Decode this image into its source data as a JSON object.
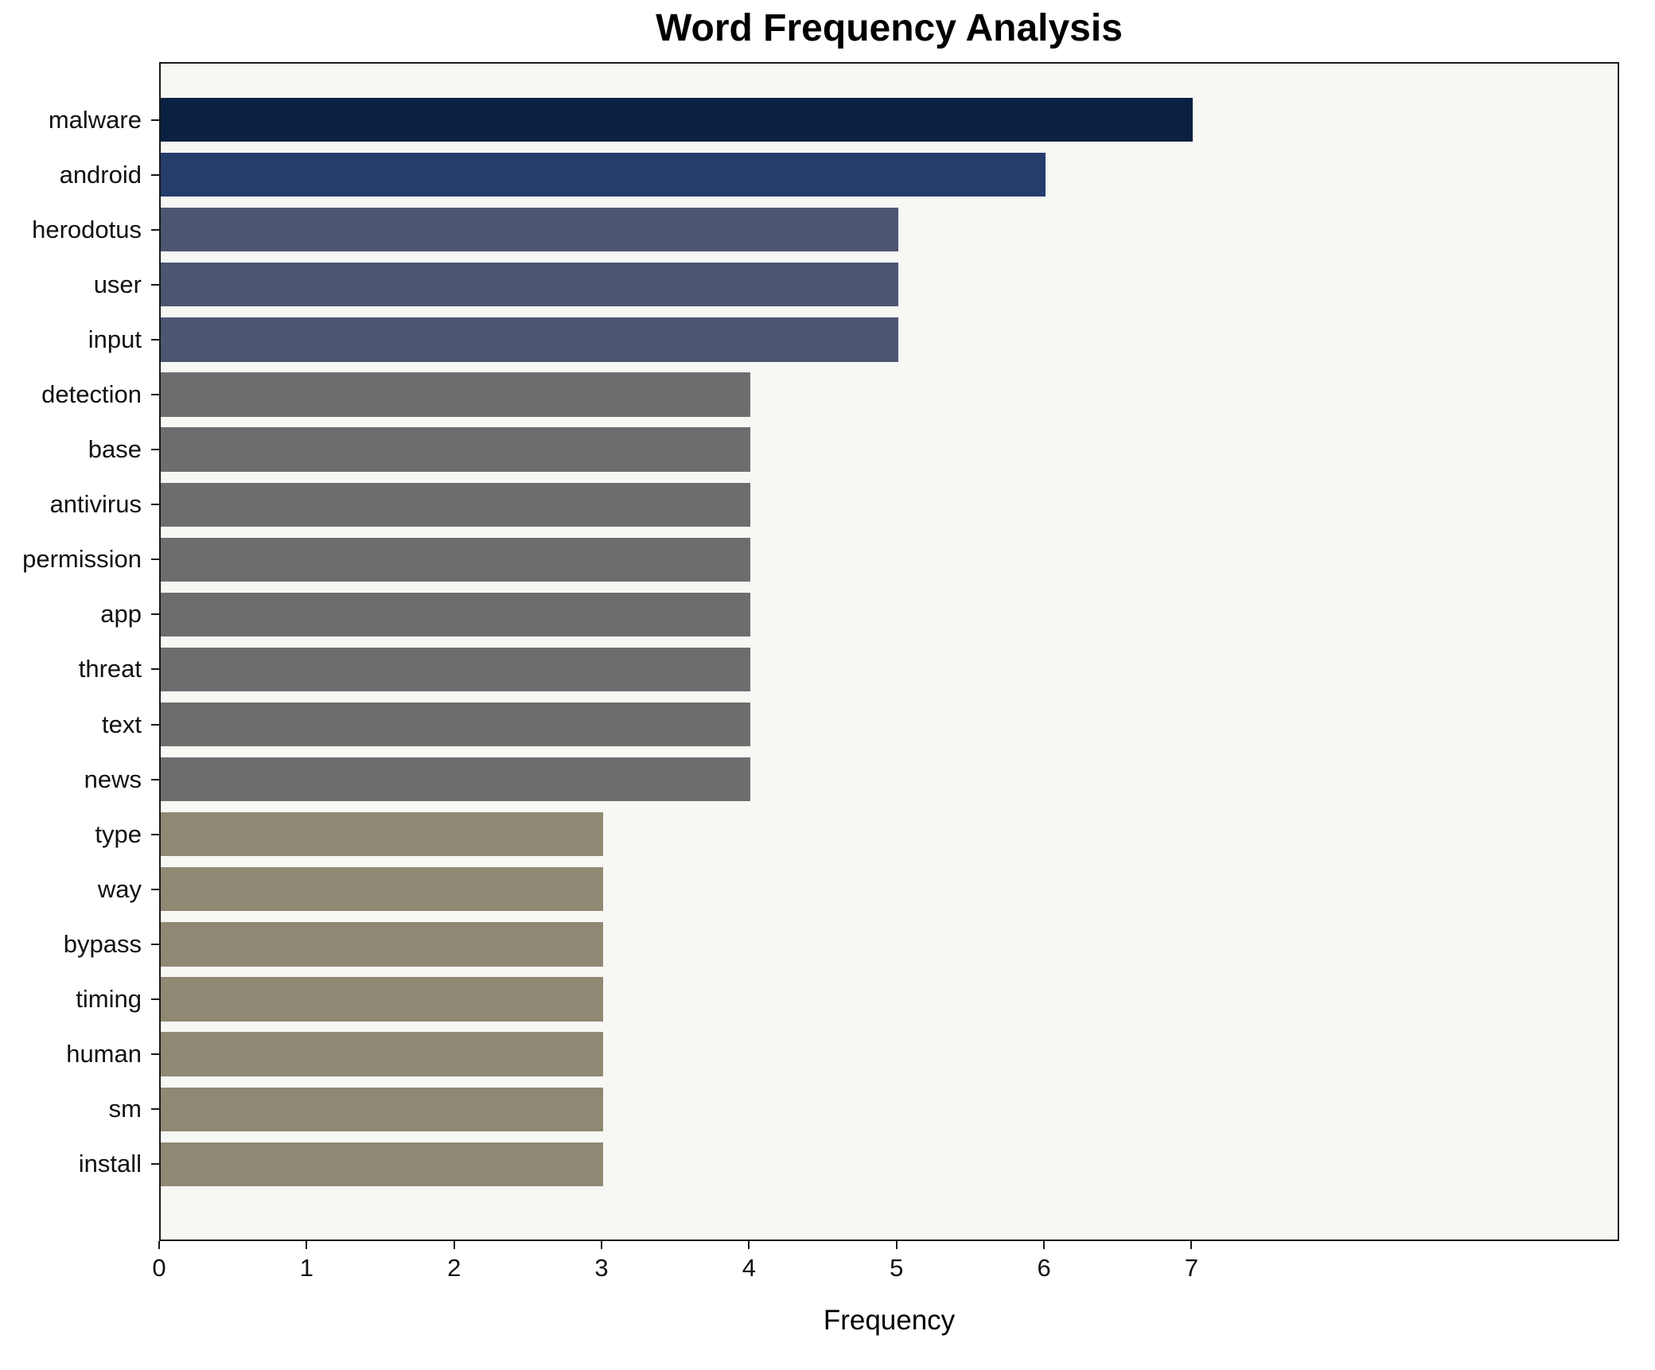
{
  "chart_data": {
    "type": "bar",
    "orientation": "horizontal",
    "title": "Word Frequency Analysis",
    "xlabel": "Frequency",
    "ylabel": "",
    "categories": [
      "malware",
      "android",
      "herodotus",
      "user",
      "input",
      "detection",
      "base",
      "antivirus",
      "permission",
      "app",
      "threat",
      "text",
      "news",
      "type",
      "way",
      "bypass",
      "timing",
      "human",
      "sm",
      "install"
    ],
    "values": [
      7,
      6,
      5,
      5,
      5,
      4,
      4,
      4,
      4,
      4,
      4,
      4,
      4,
      3,
      3,
      3,
      3,
      3,
      3,
      3
    ],
    "bar_colors": [
      "#0b2142",
      "#253c6d",
      "#4d5571",
      "#4d5571",
      "#4d5571",
      "#6d6d6f",
      "#6d6d6f",
      "#6d6d6f",
      "#6d6d6f",
      "#6d6d6f",
      "#6d6d6f",
      "#6d6d6f",
      "#6d6d6f",
      "#8f8873",
      "#8f8873",
      "#8f8873",
      "#8f8873",
      "#8f8873",
      "#8f8873",
      "#8f8873"
    ],
    "xlim": [
      0,
      9.9
    ],
    "xticks": [
      0,
      1,
      2,
      3,
      4,
      5,
      6,
      7
    ],
    "grid": false,
    "legend_position": "none",
    "plot_background": "#f7f7f4",
    "figure_background": "#ffffff"
  }
}
